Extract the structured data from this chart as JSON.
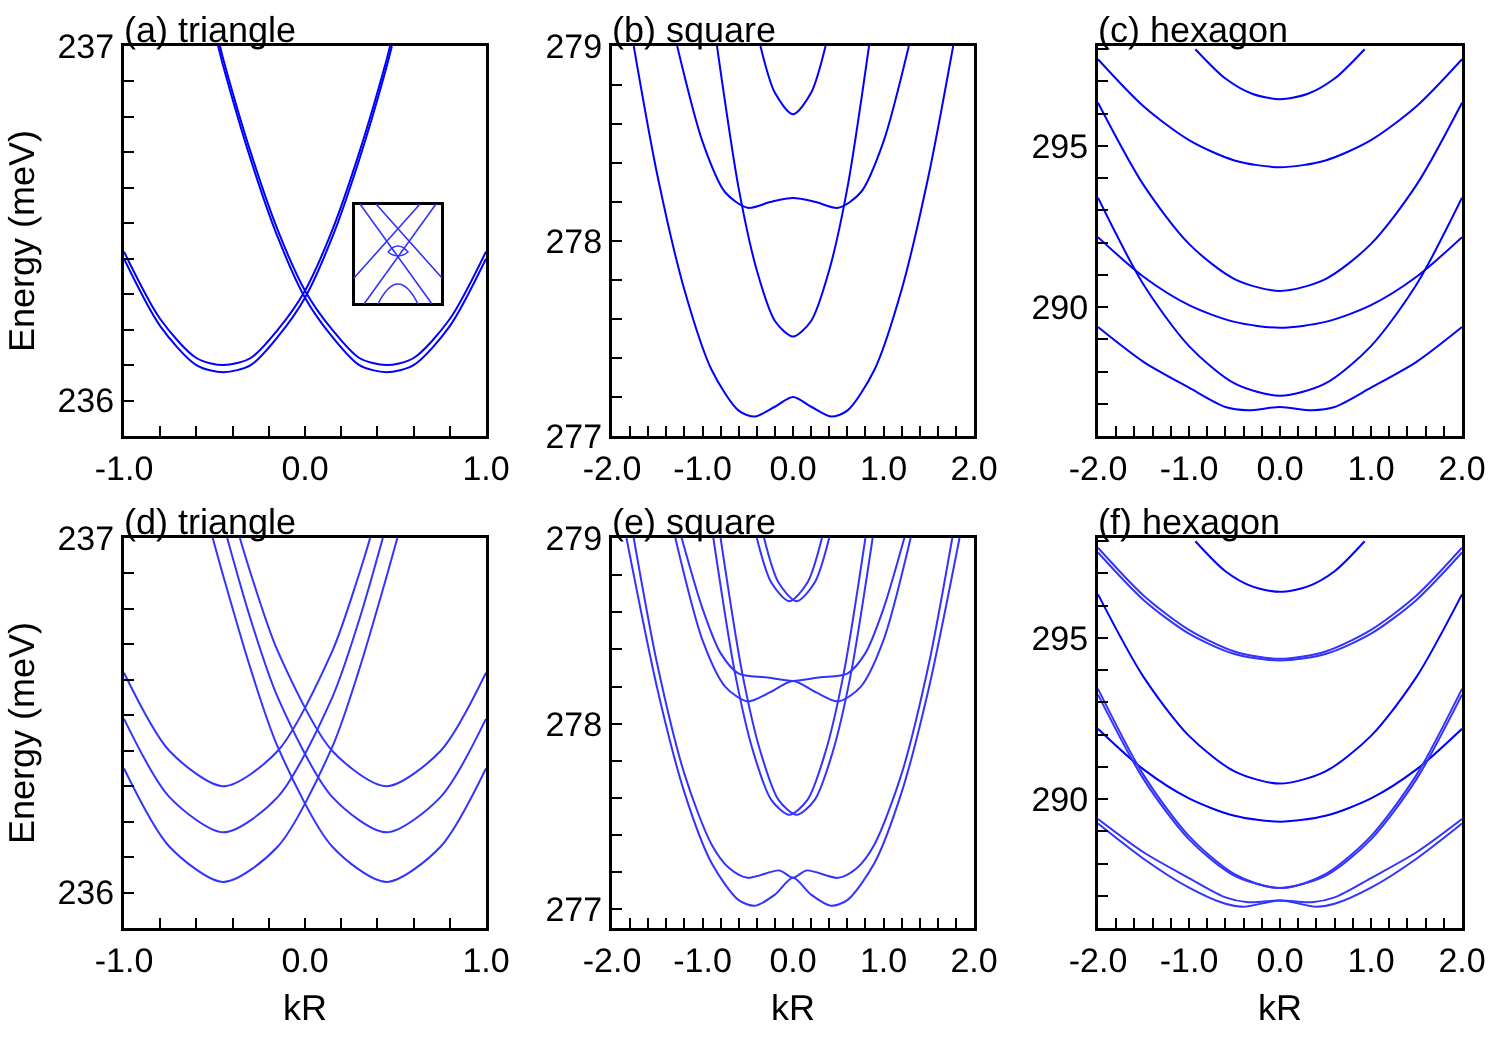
{
  "chart_data": [
    {
      "type": "line",
      "title": "(a) triangle",
      "ylabel": "Energy (meV)",
      "xlim": [
        -1,
        1
      ],
      "ylim": [
        235.9,
        237
      ],
      "line_style": "solid",
      "xticks": [
        {
          "value": -1,
          "label": "-1.0"
        },
        {
          "value": -0.8,
          "label": null
        },
        {
          "value": -0.6,
          "label": null
        },
        {
          "value": -0.4,
          "label": null
        },
        {
          "value": -0.2,
          "label": null
        },
        {
          "value": 0,
          "label": "0.0"
        },
        {
          "value": 0.2,
          "label": null
        },
        {
          "value": 0.4,
          "label": null
        },
        {
          "value": 0.6,
          "label": null
        },
        {
          "value": 0.8,
          "label": null
        },
        {
          "value": 1,
          "label": "1.0"
        }
      ],
      "yticks": [
        236,
        {
          "value": 236.1,
          "label": null
        },
        {
          "value": 236.2,
          "label": null
        },
        {
          "value": 236.3,
          "label": null
        },
        {
          "value": 236.4,
          "label": null
        },
        {
          "value": 236.5,
          "label": null
        },
        {
          "value": 236.6,
          "label": null
        },
        {
          "value": 236.7,
          "label": null
        },
        {
          "value": 236.8,
          "label": null
        },
        {
          "value": 236.9,
          "label": null
        },
        237
      ],
      "series": [
        {
          "color": "#0000ff",
          "x": [
            -1,
            -0.8,
            -0.6,
            -0.45,
            -0.3,
            -0.15,
            0,
            0.15,
            0.3,
            0.45,
            0.47
          ],
          "values": [
            236.42,
            236.23,
            236.12,
            236.1,
            236.12,
            236.2,
            236.31,
            236.48,
            236.7,
            236.96,
            237.0
          ]
        },
        {
          "color": "#0000ff",
          "x": [
            -1,
            -0.8,
            -0.6,
            -0.45,
            -0.3,
            -0.15,
            0,
            0.15,
            0.3,
            0.45,
            0.48
          ],
          "values": [
            236.4,
            236.21,
            236.1,
            236.08,
            236.1,
            236.18,
            236.29,
            236.46,
            236.68,
            236.94,
            237.0
          ]
        },
        {
          "color": "#0000ff",
          "x": [
            -0.47,
            -0.45,
            -0.3,
            -0.15,
            0,
            0.15,
            0.3,
            0.45,
            0.6,
            0.8,
            1
          ],
          "values": [
            237.0,
            236.96,
            236.7,
            236.48,
            236.31,
            236.2,
            236.12,
            236.1,
            236.12,
            236.23,
            236.42
          ]
        },
        {
          "color": "#0000ff",
          "x": [
            -0.48,
            -0.45,
            -0.3,
            -0.15,
            0,
            0.15,
            0.3,
            0.45,
            0.6,
            0.8,
            1
          ],
          "values": [
            237.0,
            236.94,
            236.68,
            236.46,
            236.29,
            236.18,
            236.1,
            236.08,
            236.1,
            236.21,
            236.4
          ]
        }
      ]
    },
    {
      "type": "line",
      "title": "(b) square",
      "xlim": [
        -2,
        2
      ],
      "ylim": [
        277,
        279
      ],
      "line_style": "solid",
      "xticks": [
        {
          "value": -2,
          "label": "-2.0"
        },
        {
          "value": -1.8,
          "label": null
        },
        {
          "value": -1.6,
          "label": null
        },
        {
          "value": -1.4,
          "label": null
        },
        {
          "value": -1.2,
          "label": null
        },
        {
          "value": -1,
          "label": "-1.0"
        },
        {
          "value": -0.8,
          "label": null
        },
        {
          "value": -0.6,
          "label": null
        },
        {
          "value": -0.4,
          "label": null
        },
        {
          "value": -0.2,
          "label": null
        },
        {
          "value": 0,
          "label": "0.0"
        },
        {
          "value": 0.2,
          "label": null
        },
        {
          "value": 0.4,
          "label": null
        },
        {
          "value": 0.6,
          "label": null
        },
        {
          "value": 0.8,
          "label": null
        },
        {
          "value": 1,
          "label": "1.0"
        },
        {
          "value": 1.2,
          "label": null
        },
        {
          "value": 1.4,
          "label": null
        },
        {
          "value": 1.6,
          "label": null
        },
        {
          "value": 1.8,
          "label": null
        },
        {
          "value": 2,
          "label": "2.0"
        }
      ],
      "yticks": [
        277,
        {
          "value": 277.2,
          "label": null
        },
        {
          "value": 277.4,
          "label": null
        },
        {
          "value": 277.6,
          "label": null
        },
        {
          "value": 277.8,
          "label": null
        },
        278,
        {
          "value": 278.2,
          "label": null
        },
        {
          "value": 278.4,
          "label": null
        },
        {
          "value": 278.6,
          "label": null
        },
        {
          "value": 278.8,
          "label": null
        },
        279
      ],
      "series": [
        {
          "color": "#0000ff",
          "x": [
            -1.76,
            -1.5,
            -1.2,
            -0.9,
            -0.6,
            -0.42,
            -0.2,
            0,
            0.2,
            0.42,
            0.6,
            0.9,
            1.2,
            1.5,
            1.77
          ],
          "values": [
            279.0,
            278.34,
            277.75,
            277.34,
            277.13,
            277.1,
            277.15,
            277.2,
            277.15,
            277.1,
            277.13,
            277.34,
            277.75,
            278.34,
            279.0
          ]
        },
        {
          "color": "#0000ff",
          "x": [
            -0.84,
            -0.6,
            -0.4,
            -0.2,
            0,
            0.2,
            0.4,
            0.6,
            0.84
          ],
          "values": [
            279.0,
            278.27,
            277.85,
            277.59,
            277.51,
            277.59,
            277.85,
            278.27,
            279.0
          ]
        },
        {
          "color": "#0000ff",
          "x": [
            -1.28,
            -1.0,
            -0.75,
            -0.5,
            -0.25,
            0,
            0.25,
            0.5,
            0.75,
            1.0,
            1.28
          ],
          "values": [
            279.0,
            278.51,
            278.25,
            278.17,
            278.2,
            278.22,
            278.2,
            278.17,
            278.25,
            278.51,
            279.0
          ]
        },
        {
          "color": "#0000ff",
          "x": [
            -0.36,
            -0.2,
            0,
            0.2,
            0.36
          ],
          "values": [
            279.0,
            278.76,
            278.65,
            278.76,
            279.0
          ]
        }
      ]
    },
    {
      "type": "line",
      "title": "(c) hexagon",
      "xlim": [
        -2,
        2
      ],
      "ylim": [
        286,
        298.1
      ],
      "line_style": "solid",
      "xticks": [
        {
          "value": -2,
          "label": "-2.0"
        },
        {
          "value": -1.8,
          "label": null
        },
        {
          "value": -1.6,
          "label": null
        },
        {
          "value": -1.4,
          "label": null
        },
        {
          "value": -1.2,
          "label": null
        },
        {
          "value": -1,
          "label": "-1.0"
        },
        {
          "value": -0.8,
          "label": null
        },
        {
          "value": -0.6,
          "label": null
        },
        {
          "value": -0.4,
          "label": null
        },
        {
          "value": -0.2,
          "label": null
        },
        {
          "value": 0,
          "label": "0.0"
        },
        {
          "value": 0.2,
          "label": null
        },
        {
          "value": 0.4,
          "label": null
        },
        {
          "value": 0.6,
          "label": null
        },
        {
          "value": 0.8,
          "label": null
        },
        {
          "value": 1,
          "label": "1.0"
        },
        {
          "value": 1.2,
          "label": null
        },
        {
          "value": 1.4,
          "label": null
        },
        {
          "value": 1.6,
          "label": null
        },
        {
          "value": 1.8,
          "label": null
        },
        {
          "value": 2,
          "label": "2.0"
        }
      ],
      "yticks": [
        {
          "value": 287,
          "label": null
        },
        {
          "value": 288,
          "label": null
        },
        {
          "value": 289,
          "label": null
        },
        290,
        {
          "value": 291,
          "label": null
        },
        {
          "value": 292,
          "label": null
        },
        {
          "value": 293,
          "label": null
        },
        {
          "value": 294,
          "label": null
        },
        295,
        {
          "value": 296,
          "label": null
        },
        {
          "value": 297,
          "label": null
        },
        {
          "value": 298,
          "label": null
        }
      ],
      "series": [
        {
          "color": "#0000ff",
          "x": [
            -0.93,
            -0.6,
            -0.3,
            0,
            0.3,
            0.6,
            0.93
          ],
          "values": [
            298.0,
            297.09,
            296.61,
            296.45,
            296.61,
            297.09,
            298.0
          ]
        },
        {
          "color": "#0000ff",
          "x": [
            -2,
            -1.5,
            -1,
            -0.5,
            0,
            0.5,
            1,
            1.5,
            2
          ],
          "values": [
            297.69,
            296.23,
            295.18,
            294.55,
            294.34,
            294.55,
            295.18,
            296.23,
            297.69
          ]
        },
        {
          "color": "#0000ff",
          "x": [
            -2,
            -1.5,
            -1,
            -0.5,
            0,
            0.5,
            1,
            1.5,
            2
          ],
          "values": [
            296.34,
            293.79,
            291.96,
            290.87,
            290.5,
            290.87,
            291.96,
            293.79,
            296.34
          ]
        },
        {
          "color": "#0000ff",
          "x": [
            -2,
            -1.5,
            -1,
            -0.5,
            0,
            0.5,
            1,
            1.5,
            2
          ],
          "values": [
            292.17,
            290.94,
            290.06,
            289.54,
            289.36,
            289.54,
            290.06,
            290.94,
            292.17
          ]
        },
        {
          "color": "#0000ff",
          "x": [
            -2,
            -1.5,
            -1,
            -0.5,
            0,
            0.5,
            1,
            1.5,
            2
          ],
          "values": [
            293.39,
            290.7,
            288.79,
            287.63,
            287.25,
            287.63,
            288.79,
            290.7,
            293.39
          ]
        },
        {
          "color": "#0000ff",
          "x": [
            -2,
            -1.5,
            -1,
            -0.6,
            -0.35,
            0,
            0.35,
            0.6,
            1,
            1.5,
            2
          ],
          "values": [
            289.38,
            288.3,
            287.5,
            286.9,
            286.8,
            286.9,
            286.8,
            286.9,
            287.5,
            288.3,
            289.38
          ]
        }
      ]
    },
    {
      "type": "line",
      "title": "(d) triangle",
      "xlabel": "kR",
      "ylabel": "Energy (meV)",
      "xlim": [
        -1,
        1
      ],
      "ylim": [
        235.9,
        237
      ],
      "line_style": "solid",
      "xticks": [
        {
          "value": -1,
          "label": "-1.0"
        },
        {
          "value": -0.8,
          "label": null
        },
        {
          "value": -0.6,
          "label": null
        },
        {
          "value": -0.4,
          "label": null
        },
        {
          "value": -0.2,
          "label": null
        },
        {
          "value": 0,
          "label": "0.0"
        },
        {
          "value": 0.2,
          "label": null
        },
        {
          "value": 0.4,
          "label": null
        },
        {
          "value": 0.6,
          "label": null
        },
        {
          "value": 0.8,
          "label": null
        },
        {
          "value": 1,
          "label": "1.0"
        }
      ],
      "yticks": [
        236,
        {
          "value": 236.1,
          "label": null
        },
        {
          "value": 236.2,
          "label": null
        },
        {
          "value": 236.3,
          "label": null
        },
        {
          "value": 236.4,
          "label": null
        },
        {
          "value": 236.5,
          "label": null
        },
        {
          "value": 236.6,
          "label": null
        },
        {
          "value": 236.7,
          "label": null
        },
        {
          "value": 236.8,
          "label": null
        },
        {
          "value": 236.9,
          "label": null
        },
        237
      ],
      "series": [
        {
          "color": "#3333ff",
          "x": [
            -1,
            -0.75,
            -0.45,
            -0.15,
            0.15,
            0.3,
            0.36
          ],
          "values": [
            236.62,
            236.4,
            236.3,
            236.4,
            236.68,
            236.9,
            237.0
          ]
        },
        {
          "color": "#3333ff",
          "x": [
            -1,
            -0.75,
            -0.45,
            -0.15,
            0.15,
            0.3,
            0.43
          ],
          "values": [
            236.49,
            236.27,
            236.17,
            236.27,
            236.55,
            236.77,
            237.0
          ]
        },
        {
          "color": "#3333ff",
          "x": [
            -1,
            -0.75,
            -0.45,
            -0.15,
            0.15,
            0.3,
            0.45,
            0.51
          ],
          "values": [
            236.35,
            236.13,
            236.03,
            236.13,
            236.41,
            236.63,
            236.89,
            237.0
          ]
        },
        {
          "color": "#3333ff",
          "x": [
            -0.36,
            -0.3,
            -0.15,
            0.15,
            0.45,
            0.75,
            1
          ],
          "values": [
            237.0,
            236.9,
            236.68,
            236.4,
            236.3,
            236.4,
            236.62
          ]
        },
        {
          "color": "#3333ff",
          "x": [
            -0.43,
            -0.3,
            -0.15,
            0.15,
            0.45,
            0.75,
            1
          ],
          "values": [
            237.0,
            236.77,
            236.55,
            236.27,
            236.17,
            236.27,
            236.49
          ]
        },
        {
          "color": "#3333ff",
          "x": [
            -0.51,
            -0.45,
            -0.3,
            -0.15,
            0.15,
            0.45,
            0.75,
            1
          ],
          "values": [
            237.0,
            236.89,
            236.63,
            236.41,
            236.13,
            236.03,
            236.13,
            236.35
          ]
        }
      ]
    },
    {
      "type": "line",
      "title": "(e) square",
      "xlabel": "kR",
      "xlim": [
        -2,
        2
      ],
      "ylim": [
        276.9,
        279
      ],
      "line_style": "solid",
      "xticks": [
        {
          "value": -2,
          "label": "-2.0"
        },
        {
          "value": -1.8,
          "label": null
        },
        {
          "value": -1.6,
          "label": null
        },
        {
          "value": -1.4,
          "label": null
        },
        {
          "value": -1.2,
          "label": null
        },
        {
          "value": -1,
          "label": "-1.0"
        },
        {
          "value": -0.8,
          "label": null
        },
        {
          "value": -0.6,
          "label": null
        },
        {
          "value": -0.4,
          "label": null
        },
        {
          "value": -0.2,
          "label": null
        },
        {
          "value": 0,
          "label": "0.0"
        },
        {
          "value": 0.2,
          "label": null
        },
        {
          "value": 0.4,
          "label": null
        },
        {
          "value": 0.6,
          "label": null
        },
        {
          "value": 0.8,
          "label": null
        },
        {
          "value": 1,
          "label": "1.0"
        },
        {
          "value": 1.2,
          "label": null
        },
        {
          "value": 1.4,
          "label": null
        },
        {
          "value": 1.6,
          "label": null
        },
        {
          "value": 1.8,
          "label": null
        },
        {
          "value": 2,
          "label": "2.0"
        }
      ],
      "yticks": [
        277,
        {
          "value": 277.2,
          "label": null
        },
        {
          "value": 277.4,
          "label": null
        },
        {
          "value": 277.6,
          "label": null
        },
        {
          "value": 277.8,
          "label": null
        },
        278,
        {
          "value": 278.2,
          "label": null
        },
        {
          "value": 278.4,
          "label": null
        },
        {
          "value": 278.6,
          "label": null
        },
        {
          "value": 278.8,
          "label": null
        },
        279
      ],
      "series": [
        {
          "color": "#3333ff",
          "x": [
            -1.84,
            -1.5,
            -1.2,
            -0.9,
            -0.6,
            -0.42,
            -0.2,
            0,
            0.2,
            0.42,
            0.6,
            0.9,
            1.2,
            1.5,
            1.84
          ],
          "values": [
            279.0,
            278.19,
            277.63,
            277.25,
            277.05,
            277.02,
            277.08,
            277.17,
            277.08,
            277.02,
            277.05,
            277.25,
            277.63,
            278.19,
            279.0
          ]
        },
        {
          "color": "#3333ff",
          "x": [
            -1.76,
            -1.5,
            -1.2,
            -0.9,
            -0.7,
            -0.5,
            -0.15,
            0,
            0.15,
            0.5,
            0.7,
            0.9,
            1.2,
            1.5,
            1.76
          ],
          "values": [
            279.0,
            278.32,
            277.73,
            277.35,
            277.22,
            277.17,
            277.21,
            277.17,
            277.21,
            277.17,
            277.22,
            277.35,
            277.73,
            278.32,
            279.0
          ]
        },
        {
          "color": "#3333ff",
          "x": [
            -0.88,
            -0.64,
            -0.44,
            -0.24,
            -0.04,
            0.16,
            0.36,
            0.56,
            0.8
          ],
          "values": [
            279.0,
            278.27,
            277.85,
            277.59,
            277.51,
            277.59,
            277.85,
            278.27,
            279.0
          ]
        },
        {
          "color": "#3333ff",
          "x": [
            -0.8,
            -0.56,
            -0.36,
            -0.16,
            0.04,
            0.24,
            0.44,
            0.64,
            0.88
          ],
          "values": [
            279.0,
            278.27,
            277.85,
            277.59,
            277.51,
            277.59,
            277.85,
            278.27,
            279.0
          ]
        },
        {
          "color": "#3333ff",
          "x": [
            -1.23,
            -1.0,
            -0.8,
            -0.6,
            -0.3,
            0,
            0.3,
            0.6,
            0.8,
            1.0,
            1.23
          ],
          "values": [
            279.0,
            278.62,
            278.38,
            278.27,
            278.25,
            278.23,
            278.25,
            278.27,
            278.38,
            278.62,
            279.0
          ]
        },
        {
          "color": "#3333ff",
          "x": [
            -1.3,
            -1.0,
            -0.75,
            -0.5,
            -0.25,
            0,
            0.25,
            0.5,
            0.75,
            1.0,
            1.3
          ],
          "values": [
            279.0,
            278.45,
            278.2,
            278.12,
            278.17,
            278.23,
            278.17,
            278.12,
            278.2,
            278.45,
            279.0
          ]
        },
        {
          "color": "#3333ff",
          "x": [
            -0.4,
            -0.24,
            -0.04,
            0.16,
            0.32
          ],
          "values": [
            279.0,
            278.76,
            278.66,
            278.76,
            279.0
          ]
        },
        {
          "color": "#3333ff",
          "x": [
            -0.32,
            -0.16,
            0.04,
            0.24,
            0.4
          ],
          "values": [
            279.0,
            278.76,
            278.66,
            278.76,
            279.0
          ]
        }
      ]
    },
    {
      "type": "line",
      "title": "(f) hexagon",
      "xlabel": "kR",
      "xlim": [
        -2,
        2
      ],
      "ylim": [
        286,
        298.1
      ],
      "line_style": "solid",
      "xticks": [
        {
          "value": -2,
          "label": "-2.0"
        },
        {
          "value": -1.8,
          "label": null
        },
        {
          "value": -1.6,
          "label": null
        },
        {
          "value": -1.4,
          "label": null
        },
        {
          "value": -1.2,
          "label": null
        },
        {
          "value": -1,
          "label": "-1.0"
        },
        {
          "value": -0.8,
          "label": null
        },
        {
          "value": -0.6,
          "label": null
        },
        {
          "value": -0.4,
          "label": null
        },
        {
          "value": -0.2,
          "label": null
        },
        {
          "value": 0,
          "label": "0.0"
        },
        {
          "value": 0.2,
          "label": null
        },
        {
          "value": 0.4,
          "label": null
        },
        {
          "value": 0.6,
          "label": null
        },
        {
          "value": 0.8,
          "label": null
        },
        {
          "value": 1,
          "label": "1.0"
        },
        {
          "value": 1.2,
          "label": null
        },
        {
          "value": 1.4,
          "label": null
        },
        {
          "value": 1.6,
          "label": null
        },
        {
          "value": 1.8,
          "label": null
        },
        {
          "value": 2,
          "label": "2.0"
        }
      ],
      "yticks": [
        {
          "value": 287,
          "label": null
        },
        {
          "value": 288,
          "label": null
        },
        {
          "value": 289,
          "label": null
        },
        290,
        {
          "value": 291,
          "label": null
        },
        {
          "value": 292,
          "label": null
        },
        {
          "value": 293,
          "label": null
        },
        {
          "value": 294,
          "label": null
        },
        295,
        {
          "value": 296,
          "label": null
        },
        {
          "value": 297,
          "label": null
        },
        {
          "value": 298,
          "label": null
        }
      ],
      "series": [
        {
          "color": "#0000ff",
          "x": [
            -0.93,
            -0.6,
            -0.3,
            0,
            0.3,
            0.6,
            0.93
          ],
          "values": [
            298.0,
            297.07,
            296.59,
            296.43,
            296.59,
            297.07,
            298.0
          ]
        },
        {
          "color": "#3333ff",
          "x": [
            -2,
            -1.5,
            -1,
            -0.5,
            0,
            0.5,
            1,
            1.5,
            2
          ],
          "values": [
            297.8,
            296.32,
            295.25,
            294.58,
            294.35,
            294.58,
            295.25,
            296.32,
            297.8
          ]
        },
        {
          "color": "#3333ff",
          "x": [
            -2,
            -1.5,
            -1,
            -0.5,
            0,
            0.5,
            1,
            1.5,
            2
          ],
          "values": [
            297.65,
            296.18,
            295.13,
            294.5,
            294.3,
            294.5,
            295.13,
            296.18,
            297.65
          ]
        },
        {
          "color": "#0000ff",
          "x": [
            -2,
            -1.5,
            -1,
            -0.5,
            0,
            0.5,
            1,
            1.5,
            2
          ],
          "values": [
            296.35,
            293.79,
            291.96,
            290.86,
            290.48,
            290.86,
            291.96,
            293.79,
            296.35
          ]
        },
        {
          "color": "#0000ff",
          "x": [
            -2,
            -1.5,
            -1,
            -0.5,
            0,
            0.5,
            1,
            1.5,
            2
          ],
          "values": [
            292.18,
            290.92,
            290.02,
            289.48,
            289.3,
            289.48,
            290.02,
            290.92,
            292.18
          ]
        },
        {
          "color": "#3333ff",
          "x": [
            -2,
            -1.5,
            -1,
            -0.5,
            -0.03,
            0.5,
            1,
            1.5,
            2
          ],
          "values": [
            293.42,
            290.75,
            288.85,
            287.67,
            287.24,
            287.62,
            288.75,
            290.62,
            293.24
          ]
        },
        {
          "color": "#3333ff",
          "x": [
            -2,
            -1.5,
            -1,
            -0.5,
            0.03,
            0.5,
            1,
            1.5,
            2
          ],
          "values": [
            293.24,
            290.62,
            288.75,
            287.62,
            287.24,
            287.67,
            288.85,
            290.75,
            293.42
          ]
        },
        {
          "color": "#3333ff",
          "x": [
            -2,
            -1.5,
            -1,
            -0.6,
            -0.4,
            0,
            0.4,
            0.6,
            1,
            1.5,
            2
          ],
          "values": [
            289.24,
            288.15,
            287.25,
            286.75,
            286.66,
            286.85,
            286.66,
            286.75,
            287.25,
            288.15,
            289.24
          ]
        },
        {
          "color": "#3333ff",
          "x": [
            -2,
            -1.5,
            -1,
            -0.6,
            -0.35,
            -0.15,
            0,
            0.15,
            0.35,
            0.6,
            1,
            1.5,
            2
          ],
          "values": [
            289.38,
            288.35,
            287.55,
            286.95,
            286.8,
            286.83,
            286.85,
            286.83,
            286.8,
            286.95,
            287.55,
            288.35,
            289.38
          ]
        }
      ]
    }
  ]
}
